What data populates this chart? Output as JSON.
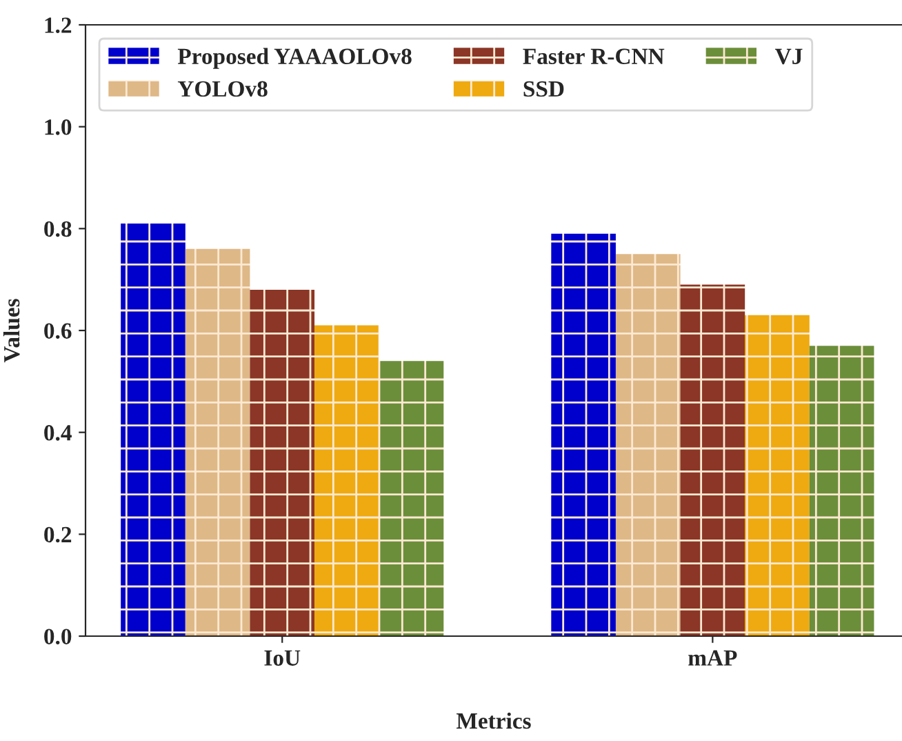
{
  "chart_data": {
    "type": "bar",
    "xlabel": "Metrics",
    "ylabel": "Values",
    "categories": [
      "IoU",
      "mAP"
    ],
    "series": [
      {
        "name": "Proposed YAAAOLOv8",
        "color": "#0000cd",
        "values": [
          0.81,
          0.79
        ]
      },
      {
        "name": "YOLOv8",
        "color": "#deb887",
        "values": [
          0.76,
          0.75
        ]
      },
      {
        "name": "Faster R-CNN",
        "color": "#8b3626",
        "values": [
          0.68,
          0.69
        ]
      },
      {
        "name": "SSD",
        "color": "#eeaa10",
        "values": [
          0.61,
          0.63
        ]
      },
      {
        "name": "VJ",
        "color": "#6b8e3a",
        "values": [
          0.54,
          0.57
        ]
      }
    ],
    "ylim": [
      0,
      1.2
    ],
    "yticks": [
      {
        "value": 0,
        "label": "0.0"
      },
      0.2,
      0.4,
      0.6,
      0.8,
      {
        "value": 1,
        "label": "1.0"
      },
      1.2
    ],
    "grid": false,
    "legend": "top left"
  }
}
